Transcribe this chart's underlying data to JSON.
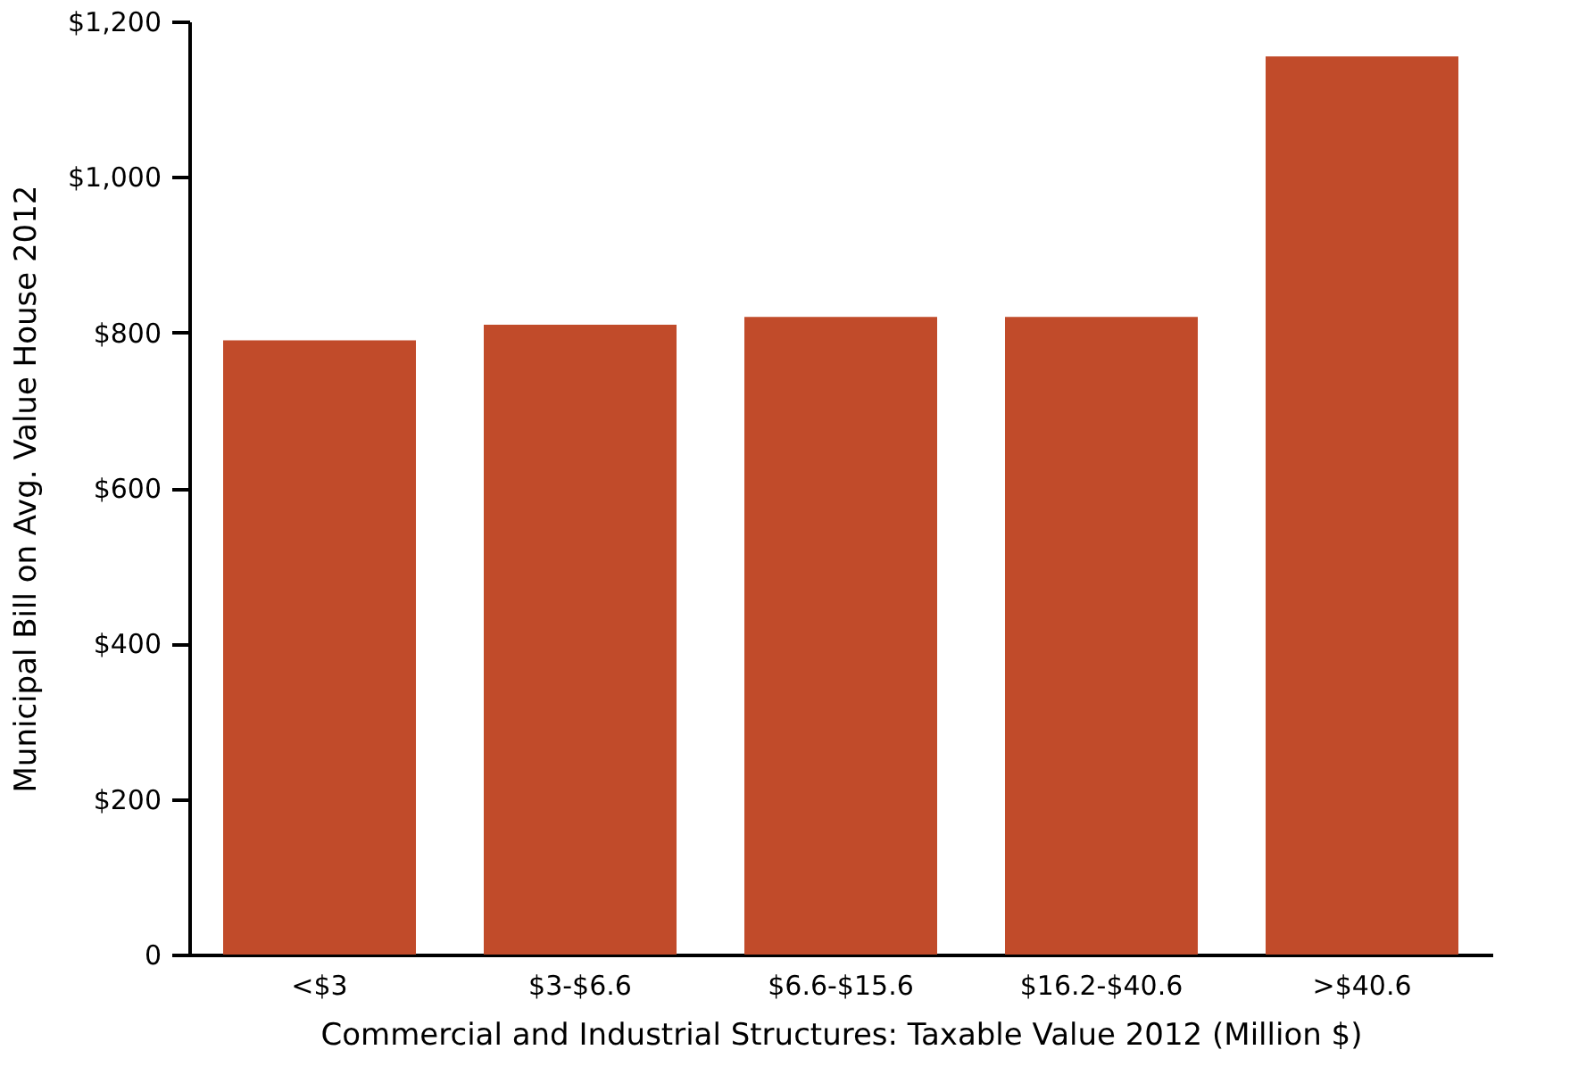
{
  "chart_data": {
    "type": "bar",
    "xlabel": "Commercial and Industrial Structures: Taxable Value 2012 (Million $)",
    "ylabel": "Municipal Bill on Avg. Value House 2012",
    "categories": [
      "<$3",
      "$3-$6.6",
      "$6.6-$15.6",
      "$16.2-$40.6",
      ">$40.6"
    ],
    "values": [
      790,
      810,
      820,
      820,
      1155
    ],
    "color": "#c14b2a",
    "ylim": [
      0,
      1200
    ],
    "yticks": [
      {
        "value": 0,
        "label": "0"
      },
      {
        "value": 200,
        "label": "$200"
      },
      {
        "value": 400,
        "label": "$400"
      },
      {
        "value": 600,
        "label": "$600"
      },
      {
        "value": 800,
        "label": "$800"
      },
      {
        "value": 1000,
        "label": "$1,000"
      },
      {
        "value": 1200,
        "label": "$1,200"
      }
    ],
    "grid": false
  }
}
